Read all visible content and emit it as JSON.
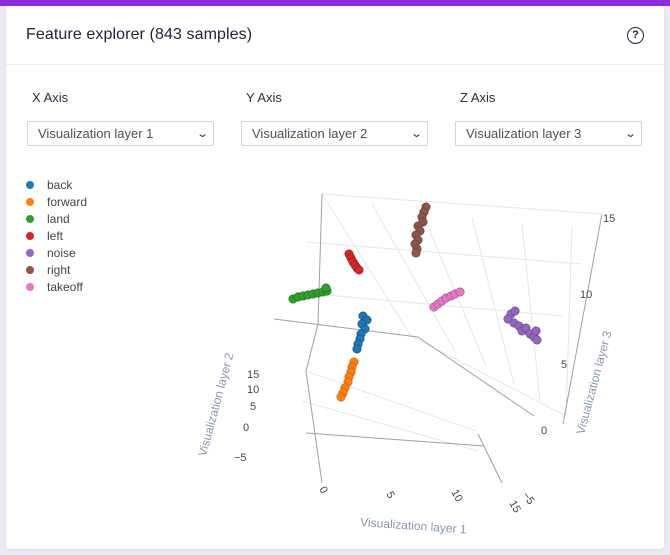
{
  "header": {
    "title": "Feature explorer (843 samples)",
    "help_icon": "?"
  },
  "axes_controls": [
    {
      "label": "X Axis",
      "selected": "Visualization layer 1"
    },
    {
      "label": "Y Axis",
      "selected": "Visualization layer 2"
    },
    {
      "label": "Z Axis",
      "selected": "Visualization layer 3"
    }
  ],
  "legend": [
    {
      "label": "back",
      "color": "#1f77b4"
    },
    {
      "label": "forward",
      "color": "#ff7f0e"
    },
    {
      "label": "land",
      "color": "#2ca02c"
    },
    {
      "label": "left",
      "color": "#d62728"
    },
    {
      "label": "noise",
      "color": "#9467bd"
    },
    {
      "label": "right",
      "color": "#8c564b"
    },
    {
      "label": "takeoff",
      "color": "#e377c2"
    }
  ],
  "chart_data": {
    "type": "scatter",
    "dimensions": 3,
    "xlabel": "Visualization layer 1",
    "ylabel": "Visualization layer 2",
    "zlabel": "Visualization layer 3",
    "x_ticks": [
      "0",
      "5",
      "10",
      "15"
    ],
    "y_ticks": [
      "15",
      "10",
      "5",
      "0",
      "−5"
    ],
    "z_ticks": [
      "15",
      "10",
      "5",
      "0",
      "−5"
    ],
    "grid": true,
    "legend_position": "top-left"
  }
}
